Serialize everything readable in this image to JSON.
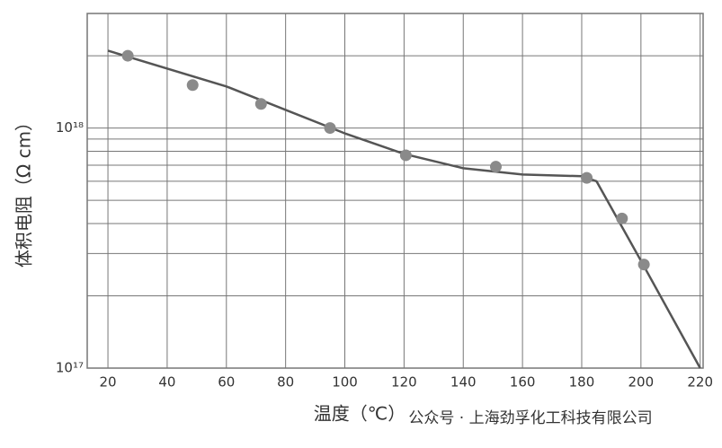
{
  "chart_data": {
    "type": "scatter",
    "x_label": "温度（℃）",
    "y_label": "体积电阻（Ω cm）",
    "annotation": "公众号 · 上海劲孚化工科技有限公司",
    "log_y": true,
    "grid": true,
    "xlim": [
      13,
      221
    ],
    "ylim": [
      1e+17,
      3e+18
    ],
    "xticks": [
      20,
      40,
      60,
      80,
      100,
      120,
      140,
      160,
      180,
      200,
      220
    ],
    "yticks": [
      {
        "value": 1e+17,
        "label": "10¹⁷"
      },
      {
        "value": 1e+18,
        "label": "10¹⁸"
      }
    ],
    "y_minor_grid": [
      2e+17,
      3e+17,
      4e+17,
      5e+17,
      6e+17,
      7e+17,
      8e+17,
      9e+17,
      2e+18,
      3e+18
    ],
    "points": {
      "color": "#8a8a8a",
      "x": [
        26.7,
        48.6,
        71.7,
        95,
        120.6,
        151,
        181.7,
        193.6,
        201
      ],
      "values": [
        2e+18,
        1.51e+18,
        1.26e+18,
        1e+18,
        7.7e+17,
        6.9e+17,
        6.2e+17,
        4.2e+17,
        2.7e+17
      ]
    },
    "curve": {
      "color": "#555555",
      "x": [
        20,
        60,
        100,
        120,
        140,
        160,
        180,
        185,
        200,
        220
      ],
      "values": [
        2.1e+18,
        1.49e+18,
        9.5e+17,
        7.8e+17,
        6.8e+17,
        6.4e+17,
        6.3e+17,
        6e+17,
        2.8e+17,
        1e+17
      ]
    }
  }
}
